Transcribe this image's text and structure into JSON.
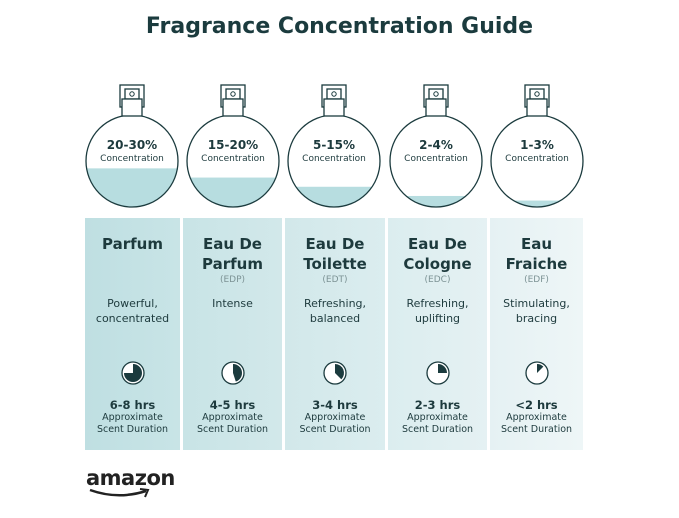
{
  "title": "Fragrance Concentration Guide",
  "colors": {
    "fill": "#b7dde0",
    "ink": "#1b3b3e",
    "col_dark": "#bfdfe2",
    "col_light": "#eef6f7"
  },
  "types": [
    {
      "concentration": "20-30%",
      "concentration_label": "Concentration",
      "fill_level": 0.42,
      "name_line1": "Parfum",
      "name_line2": "",
      "abbr": "",
      "desc_line1": "Powerful,",
      "desc_line2": "concentrated",
      "duration": "6-8 hrs",
      "duration_label1": "Approximate",
      "duration_label2": "Scent Duration",
      "timer_fraction": 0.75
    },
    {
      "concentration": "15-20%",
      "concentration_label": "Concentration",
      "fill_level": 0.32,
      "name_line1": "Eau De",
      "name_line2": "Parfum",
      "abbr": "(EDP)",
      "desc_line1": "Intense",
      "desc_line2": "",
      "duration": "4-5 hrs",
      "duration_label1": "Approximate",
      "duration_label2": "Scent Duration",
      "timer_fraction": 0.45
    },
    {
      "concentration": "5-15%",
      "concentration_label": "Concentration",
      "fill_level": 0.22,
      "name_line1": "Eau De",
      "name_line2": "Toilette",
      "abbr": "(EDT)",
      "desc_line1": "Refreshing,",
      "desc_line2": "balanced",
      "duration": "3-4 hrs",
      "duration_label1": "Approximate",
      "duration_label2": "Scent Duration",
      "timer_fraction": 0.375
    },
    {
      "concentration": "2-4%",
      "concentration_label": "Concentration",
      "fill_level": 0.12,
      "name_line1": "Eau De",
      "name_line2": "Cologne",
      "abbr": "(EDC)",
      "desc_line1": "Refreshing,",
      "desc_line2": "uplifting",
      "duration": "2-3 hrs",
      "duration_label1": "Approximate",
      "duration_label2": "Scent Duration",
      "timer_fraction": 0.25
    },
    {
      "concentration": "1-3%",
      "concentration_label": "Concentration",
      "fill_level": 0.07,
      "name_line1": "Eau",
      "name_line2": "Fraiche",
      "abbr": "(EDF)",
      "desc_line1": "Stimulating,",
      "desc_line2": "bracing",
      "duration": "<2 hrs",
      "duration_label1": "Approximate",
      "duration_label2": "Scent Duration",
      "timer_fraction": 0.125
    }
  ],
  "logo": "amazon"
}
